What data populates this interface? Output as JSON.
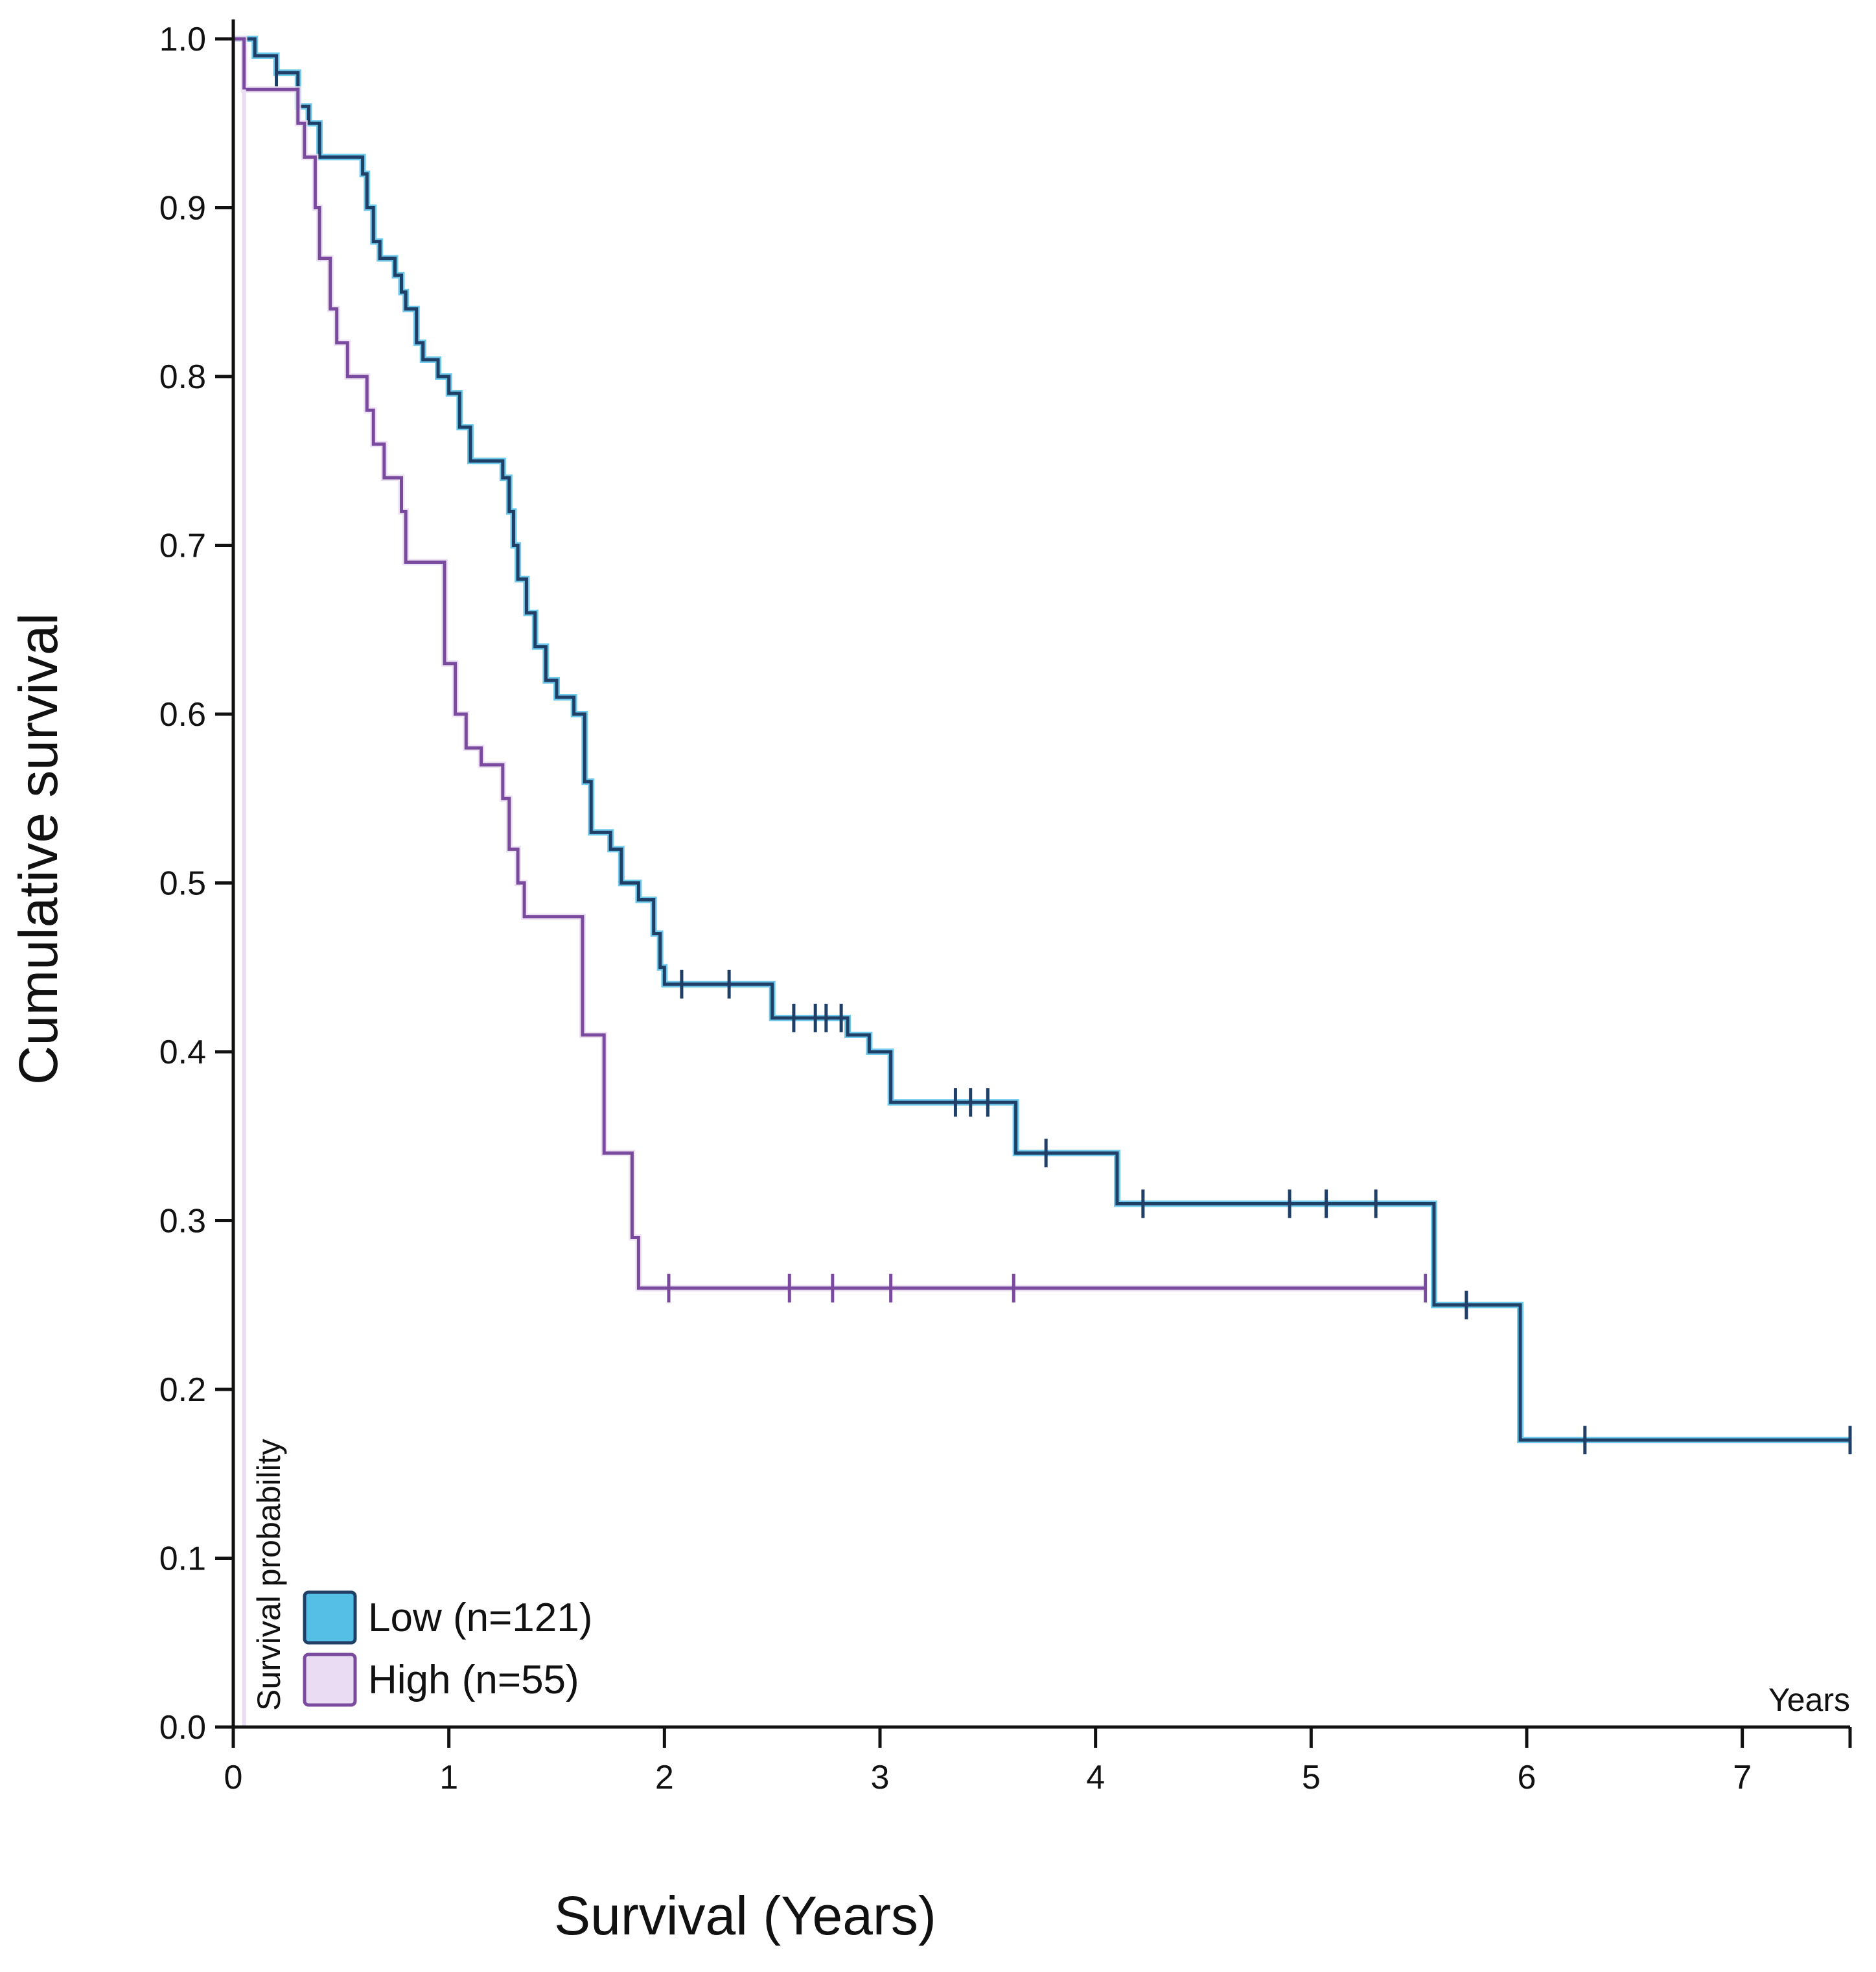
{
  "chart_data": {
    "type": "line",
    "subtype": "kaplan-meier-step",
    "ylabel": "Cumulative survival",
    "xlabel": "Survival (Years)",
    "inner_ylabel": "Survival probability",
    "inner_xlabel": "Years",
    "xlim": [
      0,
      7.5
    ],
    "ylim": [
      0,
      1.0
    ],
    "x_ticks": [
      0,
      1,
      2,
      3,
      4,
      5,
      6,
      7
    ],
    "x_tick_labels": [
      "0",
      "1",
      "2",
      "3",
      "4",
      "5",
      "6",
      "7"
    ],
    "y_ticks": [
      0,
      0.1,
      0.2,
      0.3,
      0.4,
      0.5,
      0.6,
      0.7,
      0.8,
      0.9,
      1.0
    ],
    "y_tick_labels": [
      "0.0",
      "0.1",
      "0.2",
      "0.3",
      "0.4",
      "0.5",
      "0.6",
      "0.7",
      "0.8",
      "0.9",
      "1.0"
    ],
    "legend_position": "bottom-left",
    "series": [
      {
        "name": "Low (n=121)",
        "color": "#1f3f66",
        "fill": "#56bfe6",
        "steps": [
          [
            0,
            1.0
          ],
          [
            0.1,
            0.99
          ],
          [
            0.2,
            0.98
          ],
          [
            0.3,
            0.96
          ],
          [
            0.35,
            0.95
          ],
          [
            0.4,
            0.93
          ],
          [
            0.6,
            0.92
          ],
          [
            0.62,
            0.9
          ],
          [
            0.65,
            0.88
          ],
          [
            0.68,
            0.87
          ],
          [
            0.75,
            0.86
          ],
          [
            0.78,
            0.85
          ],
          [
            0.8,
            0.84
          ],
          [
            0.85,
            0.82
          ],
          [
            0.88,
            0.81
          ],
          [
            0.95,
            0.8
          ],
          [
            1.0,
            0.79
          ],
          [
            1.05,
            0.77
          ],
          [
            1.1,
            0.75
          ],
          [
            1.25,
            0.74
          ],
          [
            1.28,
            0.72
          ],
          [
            1.3,
            0.7
          ],
          [
            1.32,
            0.68
          ],
          [
            1.36,
            0.66
          ],
          [
            1.4,
            0.64
          ],
          [
            1.45,
            0.62
          ],
          [
            1.5,
            0.61
          ],
          [
            1.58,
            0.6
          ],
          [
            1.63,
            0.56
          ],
          [
            1.66,
            0.53
          ],
          [
            1.75,
            0.52
          ],
          [
            1.8,
            0.5
          ],
          [
            1.88,
            0.49
          ],
          [
            1.95,
            0.47
          ],
          [
            1.98,
            0.45
          ],
          [
            2.0,
            0.44
          ],
          [
            2.5,
            0.42
          ],
          [
            2.85,
            0.41
          ],
          [
            2.95,
            0.4
          ],
          [
            3.05,
            0.37
          ],
          [
            3.63,
            0.34
          ],
          [
            4.1,
            0.31
          ],
          [
            5.57,
            0.25
          ],
          [
            5.97,
            0.17
          ],
          [
            7.5,
            0.17
          ]
        ],
        "censor_times": [
          0.2,
          2.08,
          2.3,
          2.6,
          2.7,
          2.75,
          2.82,
          3.35,
          3.42,
          3.5,
          3.77,
          4.22,
          4.9,
          5.07,
          5.3,
          5.72,
          6.27,
          7.5
        ]
      },
      {
        "name": "High (n=55)",
        "color": "#7a4a9e",
        "fill": "#eadcf2",
        "steps": [
          [
            0,
            1.0
          ],
          [
            0.05,
            0.97
          ],
          [
            0.3,
            0.95
          ],
          [
            0.33,
            0.93
          ],
          [
            0.38,
            0.9
          ],
          [
            0.4,
            0.87
          ],
          [
            0.45,
            0.84
          ],
          [
            0.48,
            0.82
          ],
          [
            0.53,
            0.8
          ],
          [
            0.62,
            0.78
          ],
          [
            0.65,
            0.76
          ],
          [
            0.7,
            0.74
          ],
          [
            0.78,
            0.72
          ],
          [
            0.8,
            0.69
          ],
          [
            0.98,
            0.63
          ],
          [
            1.03,
            0.6
          ],
          [
            1.08,
            0.58
          ],
          [
            1.15,
            0.57
          ],
          [
            1.25,
            0.55
          ],
          [
            1.28,
            0.52
          ],
          [
            1.32,
            0.5
          ],
          [
            1.35,
            0.48
          ],
          [
            1.62,
            0.41
          ],
          [
            1.72,
            0.34
          ],
          [
            1.85,
            0.29
          ],
          [
            1.88,
            0.26
          ],
          [
            5.53,
            0.26
          ]
        ],
        "censor_times": [
          2.02,
          2.58,
          2.78,
          3.05,
          3.62,
          5.53
        ]
      }
    ]
  }
}
